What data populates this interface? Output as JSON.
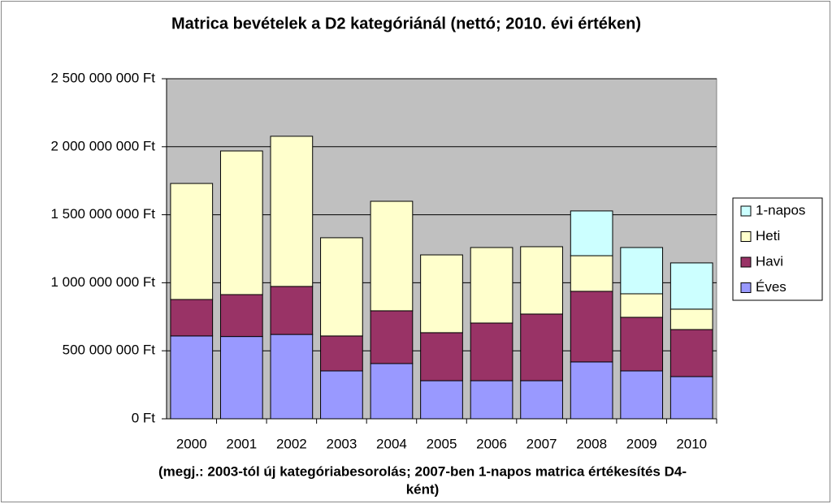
{
  "chart_data": {
    "type": "stacked_bar",
    "title": "Matrica bevételek a D2 kategóriánál (nettó; 2010. évi értéken)",
    "note": [
      "(megj.: 2003-tól új kategóriabesorolás; 2007-ben 1-napos matrica értékesítés D4-",
      "ként)"
    ],
    "categories": [
      "2000",
      "2001",
      "2002",
      "2003",
      "2004",
      "2005",
      "2006",
      "2007",
      "2008",
      "2009",
      "2010"
    ],
    "series": [
      {
        "name": "Éves",
        "color": "#9999ff",
        "values": [
          609000000,
          605000000,
          620000000,
          352000000,
          406000000,
          280000000,
          280000000,
          280000000,
          418000000,
          352000000,
          310000000
        ]
      },
      {
        "name": "Havi",
        "color": "#993366",
        "values": [
          268000000,
          308000000,
          353000000,
          257000000,
          388000000,
          353000000,
          424000000,
          490000000,
          519000000,
          394000000,
          346000000
        ]
      },
      {
        "name": "Heti",
        "color": "#ffffcc",
        "values": [
          853000000,
          1056000000,
          1104000000,
          722000000,
          805000000,
          572000000,
          555000000,
          495000000,
          262000000,
          173000000,
          150000000
        ]
      },
      {
        "name": "1-napos",
        "color": "#ccffff",
        "values": [
          null,
          null,
          null,
          null,
          null,
          null,
          null,
          null,
          329000000,
          340000000,
          340000000
        ]
      }
    ],
    "ylim": [
      0,
      2500000000
    ],
    "yticks": [
      {
        "value": 0,
        "label": "0 Ft"
      },
      {
        "value": 500000000,
        "label": "500 000 000 Ft"
      },
      {
        "value": 1000000000,
        "label": "1 000 000 000 Ft"
      },
      {
        "value": 1500000000,
        "label": "1 500 000 000 Ft"
      },
      {
        "value": 2000000000,
        "label": "2 000 000 000 Ft"
      },
      {
        "value": 2500000000,
        "label": "2 500 000 000 Ft"
      }
    ],
    "grid": true,
    "legend": "right",
    "plot_background": "#c0c0c0"
  }
}
